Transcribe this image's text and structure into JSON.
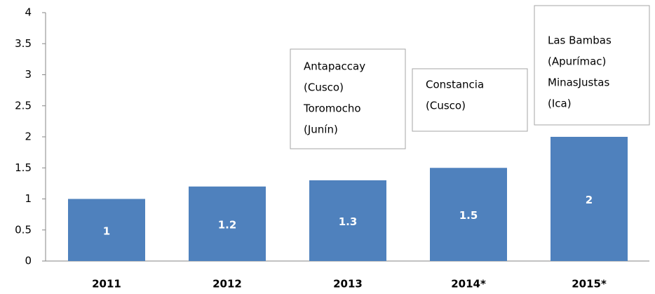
{
  "chart_data": {
    "type": "bar",
    "categories": [
      "2011",
      "2012",
      "2013",
      "2014*",
      "2015*"
    ],
    "values": [
      1,
      1.2,
      1.3,
      1.5,
      2
    ],
    "color": "#4f81bd",
    "ylim": [
      0,
      4
    ],
    "yticks": [
      0,
      0.5,
      1,
      1.5,
      2,
      2.5,
      3,
      3.5,
      4
    ],
    "grid": false,
    "annotations": [
      [
        "Antapaccay",
        "(Cusco)",
        "Toromocho",
        "(Junín)"
      ],
      [
        "Constancia",
        "(Cusco)"
      ],
      [
        "Las Bambas",
        "(Apurímac)",
        "MinasJustas",
        "(Ica)"
      ]
    ]
  }
}
